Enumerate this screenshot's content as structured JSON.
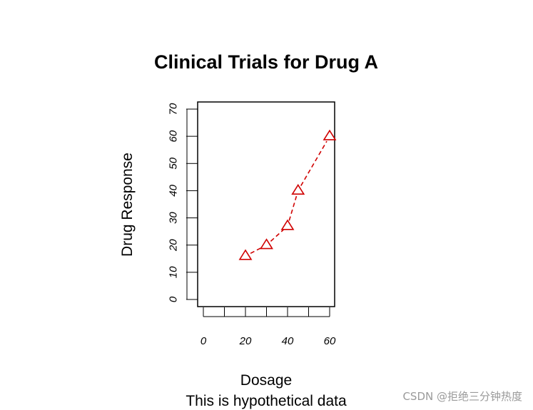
{
  "chart_data": {
    "type": "line",
    "title": "Clinical Trials for Drug A",
    "xlabel": "Dosage",
    "ylabel": "Drug Response",
    "subtitle": "This is hypothetical data",
    "x": [
      20,
      30,
      40,
      45,
      60
    ],
    "y": [
      16,
      20,
      27,
      40,
      60
    ],
    "xlim": [
      0,
      60
    ],
    "ylim": [
      0,
      70
    ],
    "xticks": [
      0,
      20,
      40,
      60
    ],
    "xticks_minor": [
      10,
      30,
      50
    ],
    "yticks": [
      0,
      10,
      20,
      30,
      40,
      50,
      60,
      70
    ],
    "line_style": "dashed",
    "marker": "triangle-open",
    "color": "#d00000",
    "grid": false
  },
  "watermark": "CSDN @拒绝三分钟热度"
}
